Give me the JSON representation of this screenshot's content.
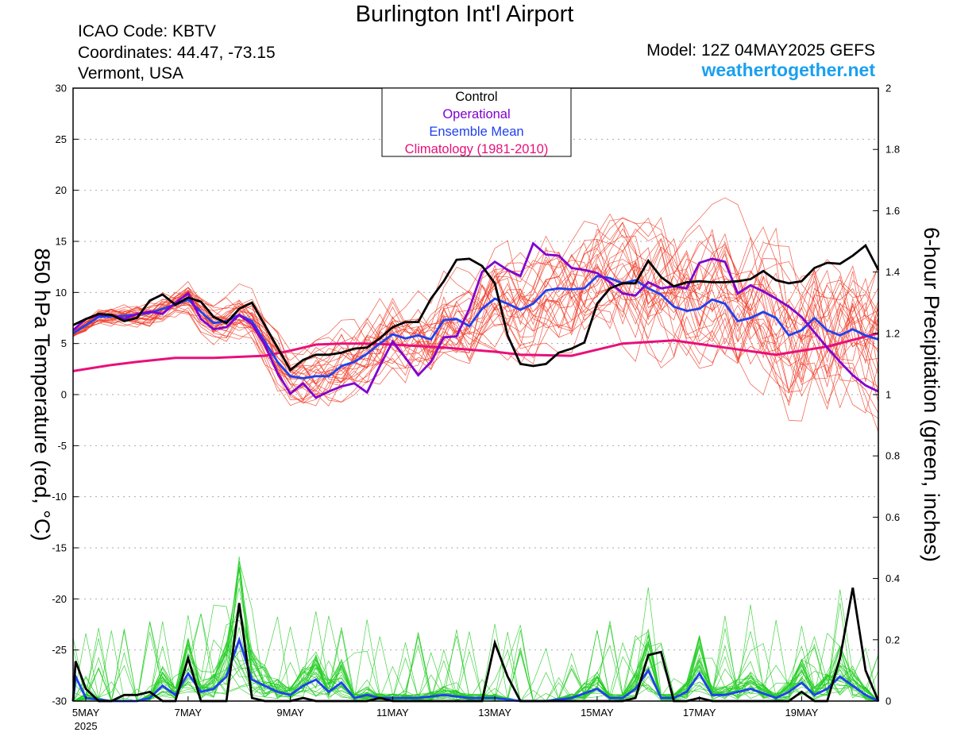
{
  "header": {
    "title": "Burlington Int'l Airport",
    "icao": "ICAO Code: KBTV",
    "coordinates": "Coordinates: 44.47, -73.15",
    "region": "Vermont, USA",
    "model": "Model: 12Z 04MAY2025 GEFS",
    "website": "weathertogether.net"
  },
  "chart_data": {
    "type": "line",
    "ylabel": "850 hPa Temperature (red, °C)",
    "ylabel2": "6-hour Precipitation (green, inches)",
    "ylim": [
      -30,
      30
    ],
    "ylim2": [
      0,
      2
    ],
    "yticks": [
      "30",
      "25",
      "20",
      "15",
      "10",
      "5",
      "0",
      "-5",
      "-10",
      "-15",
      "-20",
      "-25",
      "-30"
    ],
    "yticks2": [
      "2",
      "1.8",
      "1.6",
      "1.4",
      "1.2",
      "1",
      "0.8",
      "0.6",
      "0.4",
      "0.2",
      "0"
    ],
    "xticks": [
      {
        "day": 5,
        "label": "5MAY",
        "sub": "2025"
      },
      {
        "day": 7,
        "label": "7MAY"
      },
      {
        "day": 9,
        "label": "9MAY"
      },
      {
        "day": 11,
        "label": "11MAY"
      },
      {
        "day": 13,
        "label": "13MAY"
      },
      {
        "day": 15,
        "label": "15MAY"
      },
      {
        "day": 17,
        "label": "17MAY"
      },
      {
        "day": 19,
        "label": "19MAY"
      }
    ],
    "xrange_days": [
      4.75,
      20.5
    ],
    "legend": [
      {
        "label": "Control",
        "color": "#000000"
      },
      {
        "label": "Operational",
        "color": "#8000d0"
      },
      {
        "label": "Ensemble Mean",
        "color": "#2040f0"
      },
      {
        "label": "Climatology (1981-2010)",
        "color": "#e8107a"
      }
    ],
    "colors": {
      "members_temp": "#f03c28",
      "members_precip": "#22cc22"
    },
    "series": {
      "climatology_temp": [
        [
          4.75,
          2.3
        ],
        [
          5.5,
          2.9
        ],
        [
          6,
          3.2
        ],
        [
          6.75,
          3.6
        ],
        [
          7.5,
          3.6
        ],
        [
          8.5,
          3.8
        ],
        [
          9,
          4.3
        ],
        [
          9.5,
          4.9
        ],
        [
          10,
          5.0
        ],
        [
          10.5,
          5.0
        ],
        [
          11,
          4.9
        ],
        [
          12,
          4.6
        ],
        [
          13,
          4.2
        ],
        [
          13.5,
          3.9
        ],
        [
          14.5,
          3.8
        ],
        [
          15.5,
          5.0
        ],
        [
          16.5,
          5.3
        ],
        [
          17.5,
          4.6
        ],
        [
          18.5,
          3.9
        ],
        [
          19.5,
          4.7
        ],
        [
          20.5,
          6.0
        ]
      ],
      "control_temp": [
        [
          4.75,
          6.8
        ],
        [
          5,
          7.4
        ],
        [
          5.25,
          7.9
        ],
        [
          5.5,
          7.8
        ],
        [
          5.75,
          7.2
        ],
        [
          6,
          7.5
        ],
        [
          6.25,
          9.2
        ],
        [
          6.5,
          9.8
        ],
        [
          6.75,
          8.8
        ],
        [
          7,
          9.5
        ],
        [
          7.25,
          9.1
        ],
        [
          7.5,
          7.6
        ],
        [
          7.75,
          7.0
        ],
        [
          8,
          8.4
        ],
        [
          8.25,
          9.0
        ],
        [
          8.5,
          6.8
        ],
        [
          8.75,
          4.6
        ],
        [
          9,
          2.4
        ],
        [
          9.25,
          3.4
        ],
        [
          9.5,
          3.9
        ],
        [
          9.75,
          3.9
        ],
        [
          10,
          4.1
        ],
        [
          10.25,
          4.5
        ],
        [
          10.5,
          4.6
        ],
        [
          10.75,
          5.5
        ],
        [
          11,
          6.6
        ],
        [
          11.25,
          7.1
        ],
        [
          11.5,
          7.1
        ],
        [
          11.75,
          9.4
        ],
        [
          12,
          11.1
        ],
        [
          12.25,
          13.2
        ],
        [
          12.5,
          13.3
        ],
        [
          12.75,
          12.6
        ],
        [
          13,
          10.9
        ],
        [
          13.25,
          5.8
        ],
        [
          13.5,
          3.0
        ],
        [
          13.75,
          2.8
        ],
        [
          14,
          3.0
        ],
        [
          14.25,
          4.1
        ],
        [
          14.5,
          4.5
        ],
        [
          14.75,
          5.1
        ],
        [
          15,
          8.9
        ],
        [
          15.25,
          10.4
        ],
        [
          15.5,
          10.9
        ],
        [
          15.75,
          10.9
        ],
        [
          16,
          13.1
        ],
        [
          16.25,
          11.5
        ],
        [
          16.5,
          10.6
        ],
        [
          16.75,
          11.0
        ],
        [
          17,
          11.1
        ],
        [
          17.25,
          11.0
        ],
        [
          17.5,
          11.0
        ],
        [
          17.75,
          11.1
        ],
        [
          18,
          11.3
        ],
        [
          18.25,
          12.1
        ],
        [
          18.5,
          11.2
        ],
        [
          18.75,
          10.9
        ],
        [
          19,
          11.1
        ],
        [
          19.25,
          12.4
        ],
        [
          19.5,
          12.9
        ],
        [
          19.75,
          12.8
        ],
        [
          20,
          13.6
        ],
        [
          20.25,
          14.6
        ],
        [
          20.5,
          12.2
        ]
      ],
      "operational_temp": [
        [
          4.75,
          6.3
        ],
        [
          5,
          7.4
        ],
        [
          5.25,
          7.8
        ],
        [
          5.5,
          7.8
        ],
        [
          5.75,
          7.4
        ],
        [
          6,
          7.9
        ],
        [
          6.25,
          8.1
        ],
        [
          6.5,
          7.9
        ],
        [
          6.75,
          9.0
        ],
        [
          7,
          9.9
        ],
        [
          7.25,
          7.4
        ],
        [
          7.5,
          6.4
        ],
        [
          7.75,
          6.6
        ],
        [
          8,
          7.8
        ],
        [
          8.25,
          6.9
        ],
        [
          8.5,
          4.9
        ],
        [
          8.75,
          2.1
        ],
        [
          9,
          0.1
        ],
        [
          9.25,
          1.1
        ],
        [
          9.5,
          -0.3
        ],
        [
          9.75,
          0.3
        ],
        [
          10,
          0.8
        ],
        [
          10.25,
          1.1
        ],
        [
          10.5,
          0.2
        ],
        [
          10.75,
          2.8
        ],
        [
          11,
          5.2
        ],
        [
          11.25,
          3.6
        ],
        [
          11.5,
          1.9
        ],
        [
          11.75,
          3.2
        ],
        [
          12,
          5.6
        ],
        [
          12.25,
          5.7
        ],
        [
          12.5,
          8.4
        ],
        [
          12.75,
          12.0
        ],
        [
          13,
          13.0
        ],
        [
          13.25,
          12.2
        ],
        [
          13.5,
          11.6
        ],
        [
          13.75,
          14.8
        ],
        [
          14,
          13.7
        ],
        [
          14.25,
          13.6
        ],
        [
          14.5,
          12.4
        ],
        [
          14.75,
          12.2
        ],
        [
          15,
          11.9
        ],
        [
          15.25,
          11.0
        ],
        [
          15.5,
          9.9
        ],
        [
          15.75,
          9.7
        ],
        [
          16,
          11.0
        ],
        [
          16.25,
          10.4
        ],
        [
          16.5,
          10.6
        ],
        [
          16.75,
          10.4
        ],
        [
          17,
          12.9
        ],
        [
          17.25,
          13.3
        ],
        [
          17.5,
          13.0
        ],
        [
          17.75,
          9.9
        ],
        [
          18,
          10.7
        ],
        [
          18.25,
          10.1
        ],
        [
          18.5,
          9.4
        ],
        [
          18.75,
          8.6
        ],
        [
          19,
          7.6
        ],
        [
          19.25,
          6.1
        ],
        [
          19.5,
          4.6
        ],
        [
          19.75,
          3.2
        ],
        [
          20,
          1.9
        ],
        [
          20.25,
          0.9
        ],
        [
          20.5,
          0.3
        ]
      ],
      "ensemble_mean_temp": [
        [
          4.75,
          6.0
        ],
        [
          5.25,
          7.6
        ],
        [
          5.75,
          7.7
        ],
        [
          6.25,
          8.0
        ],
        [
          6.75,
          8.8
        ],
        [
          7,
          9.3
        ],
        [
          7.25,
          8.1
        ],
        [
          7.5,
          7.0
        ],
        [
          7.75,
          7.2
        ],
        [
          8,
          7.8
        ],
        [
          8.25,
          7.2
        ],
        [
          8.5,
          5.2
        ],
        [
          8.75,
          3.2
        ],
        [
          9,
          1.8
        ],
        [
          9.25,
          1.6
        ],
        [
          9.5,
          1.8
        ],
        [
          9.75,
          1.8
        ],
        [
          10,
          2.8
        ],
        [
          10.25,
          3.2
        ],
        [
          10.5,
          4.0
        ],
        [
          10.75,
          5.0
        ],
        [
          11,
          5.9
        ],
        [
          11.25,
          5.5
        ],
        [
          11.5,
          5.8
        ],
        [
          11.75,
          5.4
        ],
        [
          12,
          7.3
        ],
        [
          12.25,
          7.4
        ],
        [
          12.5,
          6.7
        ],
        [
          12.75,
          8.4
        ],
        [
          13,
          9.4
        ],
        [
          13.25,
          8.9
        ],
        [
          13.5,
          8.3
        ],
        [
          13.75,
          8.9
        ],
        [
          14,
          10.2
        ],
        [
          14.25,
          10.4
        ],
        [
          14.5,
          10.3
        ],
        [
          14.75,
          10.4
        ],
        [
          15,
          11.6
        ],
        [
          15.25,
          11.4
        ],
        [
          15.5,
          10.9
        ],
        [
          15.75,
          11.2
        ],
        [
          16,
          10.4
        ],
        [
          16.25,
          9.8
        ],
        [
          16.5,
          8.6
        ],
        [
          16.75,
          8.2
        ],
        [
          17,
          8.4
        ],
        [
          17.25,
          9.3
        ],
        [
          17.5,
          8.9
        ],
        [
          17.75,
          7.2
        ],
        [
          18,
          7.5
        ],
        [
          18.25,
          8.1
        ],
        [
          18.5,
          7.5
        ],
        [
          18.75,
          5.8
        ],
        [
          19,
          6.3
        ],
        [
          19.25,
          7.5
        ],
        [
          19.5,
          6.3
        ],
        [
          19.75,
          5.8
        ],
        [
          20,
          6.4
        ],
        [
          20.25,
          5.8
        ],
        [
          20.5,
          5.4
        ]
      ],
      "control_precip": [
        [
          4.75,
          0
        ],
        [
          4.8,
          0.13
        ],
        [
          5,
          0.04
        ],
        [
          5.25,
          0
        ],
        [
          5.5,
          0
        ],
        [
          5.75,
          0.02
        ],
        [
          6,
          0.02
        ],
        [
          6.25,
          0.03
        ],
        [
          6.5,
          0
        ],
        [
          6.75,
          0
        ],
        [
          7,
          0.14
        ],
        [
          7.25,
          0
        ],
        [
          7.5,
          0
        ],
        [
          7.75,
          0
        ],
        [
          8,
          0.32
        ],
        [
          8.25,
          0.01
        ],
        [
          8.5,
          0
        ],
        [
          8.75,
          0
        ],
        [
          9,
          0
        ],
        [
          9.25,
          0.01
        ],
        [
          9.5,
          0
        ],
        [
          9.75,
          0
        ],
        [
          10,
          0
        ],
        [
          10.25,
          0
        ],
        [
          10.5,
          0
        ],
        [
          10.75,
          0.01
        ],
        [
          11,
          0
        ],
        [
          11.25,
          0
        ],
        [
          11.5,
          0
        ],
        [
          12,
          0
        ],
        [
          12.5,
          0
        ],
        [
          12.75,
          0
        ],
        [
          13,
          0.19
        ],
        [
          13.25,
          0.08
        ],
        [
          13.5,
          0
        ],
        [
          14,
          0
        ],
        [
          14.5,
          0
        ],
        [
          15,
          0
        ],
        [
          15.5,
          0
        ],
        [
          15.75,
          0.01
        ],
        [
          16,
          0.15
        ],
        [
          16.25,
          0.16
        ],
        [
          16.5,
          0
        ],
        [
          16.75,
          0
        ],
        [
          17,
          0.01
        ],
        [
          17.25,
          0
        ],
        [
          17.5,
          0
        ],
        [
          18,
          0
        ],
        [
          18.5,
          0
        ],
        [
          18.75,
          0
        ],
        [
          19,
          0.03
        ],
        [
          19.25,
          0
        ],
        [
          19.5,
          0
        ],
        [
          19.75,
          0.14
        ],
        [
          20,
          0.37
        ],
        [
          20.25,
          0.1
        ],
        [
          20.5,
          0
        ]
      ],
      "ensemble_mean_precip": [
        [
          4.75,
          0
        ],
        [
          4.8,
          0.08
        ],
        [
          5,
          0.01
        ],
        [
          5.5,
          0
        ],
        [
          6,
          0
        ],
        [
          6.25,
          0.01
        ],
        [
          6.5,
          0.05
        ],
        [
          6.75,
          0.02
        ],
        [
          7,
          0.09
        ],
        [
          7.25,
          0.03
        ],
        [
          7.5,
          0.04
        ],
        [
          7.75,
          0.08
        ],
        [
          8,
          0.2
        ],
        [
          8.25,
          0.07
        ],
        [
          8.5,
          0.05
        ],
        [
          8.75,
          0.03
        ],
        [
          9,
          0.02
        ],
        [
          9.25,
          0.05
        ],
        [
          9.5,
          0.07
        ],
        [
          9.75,
          0.03
        ],
        [
          10,
          0.06
        ],
        [
          10.25,
          0.01
        ],
        [
          10.5,
          0.02
        ],
        [
          10.75,
          0.01
        ],
        [
          11,
          0.01
        ],
        [
          11.5,
          0.01
        ],
        [
          12,
          0.02
        ],
        [
          12.5,
          0.01
        ],
        [
          13,
          0.01
        ],
        [
          13.5,
          0
        ],
        [
          14,
          0
        ],
        [
          14.5,
          0.01
        ],
        [
          15,
          0.04
        ],
        [
          15.25,
          0.01
        ],
        [
          15.5,
          0.01
        ],
        [
          15.75,
          0.04
        ],
        [
          16,
          0.1
        ],
        [
          16.25,
          0.01
        ],
        [
          16.5,
          0.01
        ],
        [
          16.75,
          0.03
        ],
        [
          17,
          0.09
        ],
        [
          17.25,
          0.02
        ],
        [
          17.5,
          0.02
        ],
        [
          18,
          0.04
        ],
        [
          18.5,
          0.01
        ],
        [
          18.75,
          0.03
        ],
        [
          19,
          0.06
        ],
        [
          19.25,
          0.02
        ],
        [
          19.5,
          0.04
        ],
        [
          19.75,
          0.08
        ],
        [
          20,
          0.05
        ],
        [
          20.25,
          0.02
        ],
        [
          20.5,
          0
        ]
      ]
    }
  }
}
